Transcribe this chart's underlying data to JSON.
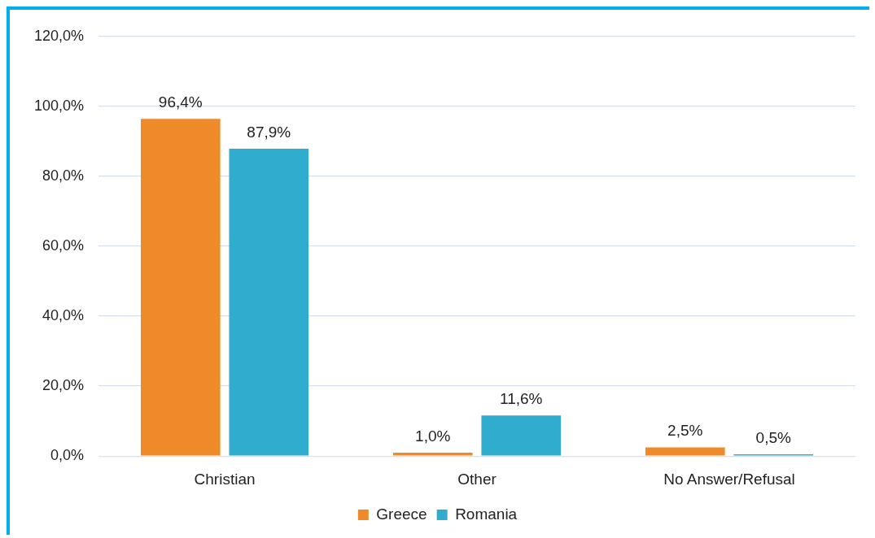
{
  "chart_data": {
    "type": "bar",
    "categories": [
      "Christian",
      "Other",
      "No Answer/Refusal"
    ],
    "series": [
      {
        "name": "Greece",
        "color": "#ef8a2a",
        "values": [
          96.4,
          1.0,
          2.5
        ],
        "value_labels": [
          "96,4%",
          "1,0%",
          "2,5%"
        ]
      },
      {
        "name": "Romania",
        "color": "#30acce",
        "values": [
          87.9,
          11.6,
          0.5
        ],
        "value_labels": [
          "87,9%",
          "11,6%",
          "0,5%"
        ]
      }
    ],
    "ylim": [
      0,
      120
    ],
    "yticks": [
      {
        "value": 0,
        "label": "0,0%"
      },
      {
        "value": 20,
        "label": "20,0%"
      },
      {
        "value": 40,
        "label": "40,0%"
      },
      {
        "value": 60,
        "label": "60,0%"
      },
      {
        "value": 80,
        "label": "80,0%"
      },
      {
        "value": 100,
        "label": "100,0%"
      },
      {
        "value": 120,
        "label": "120,0%"
      }
    ],
    "grid": "y",
    "legend": "bottom"
  }
}
